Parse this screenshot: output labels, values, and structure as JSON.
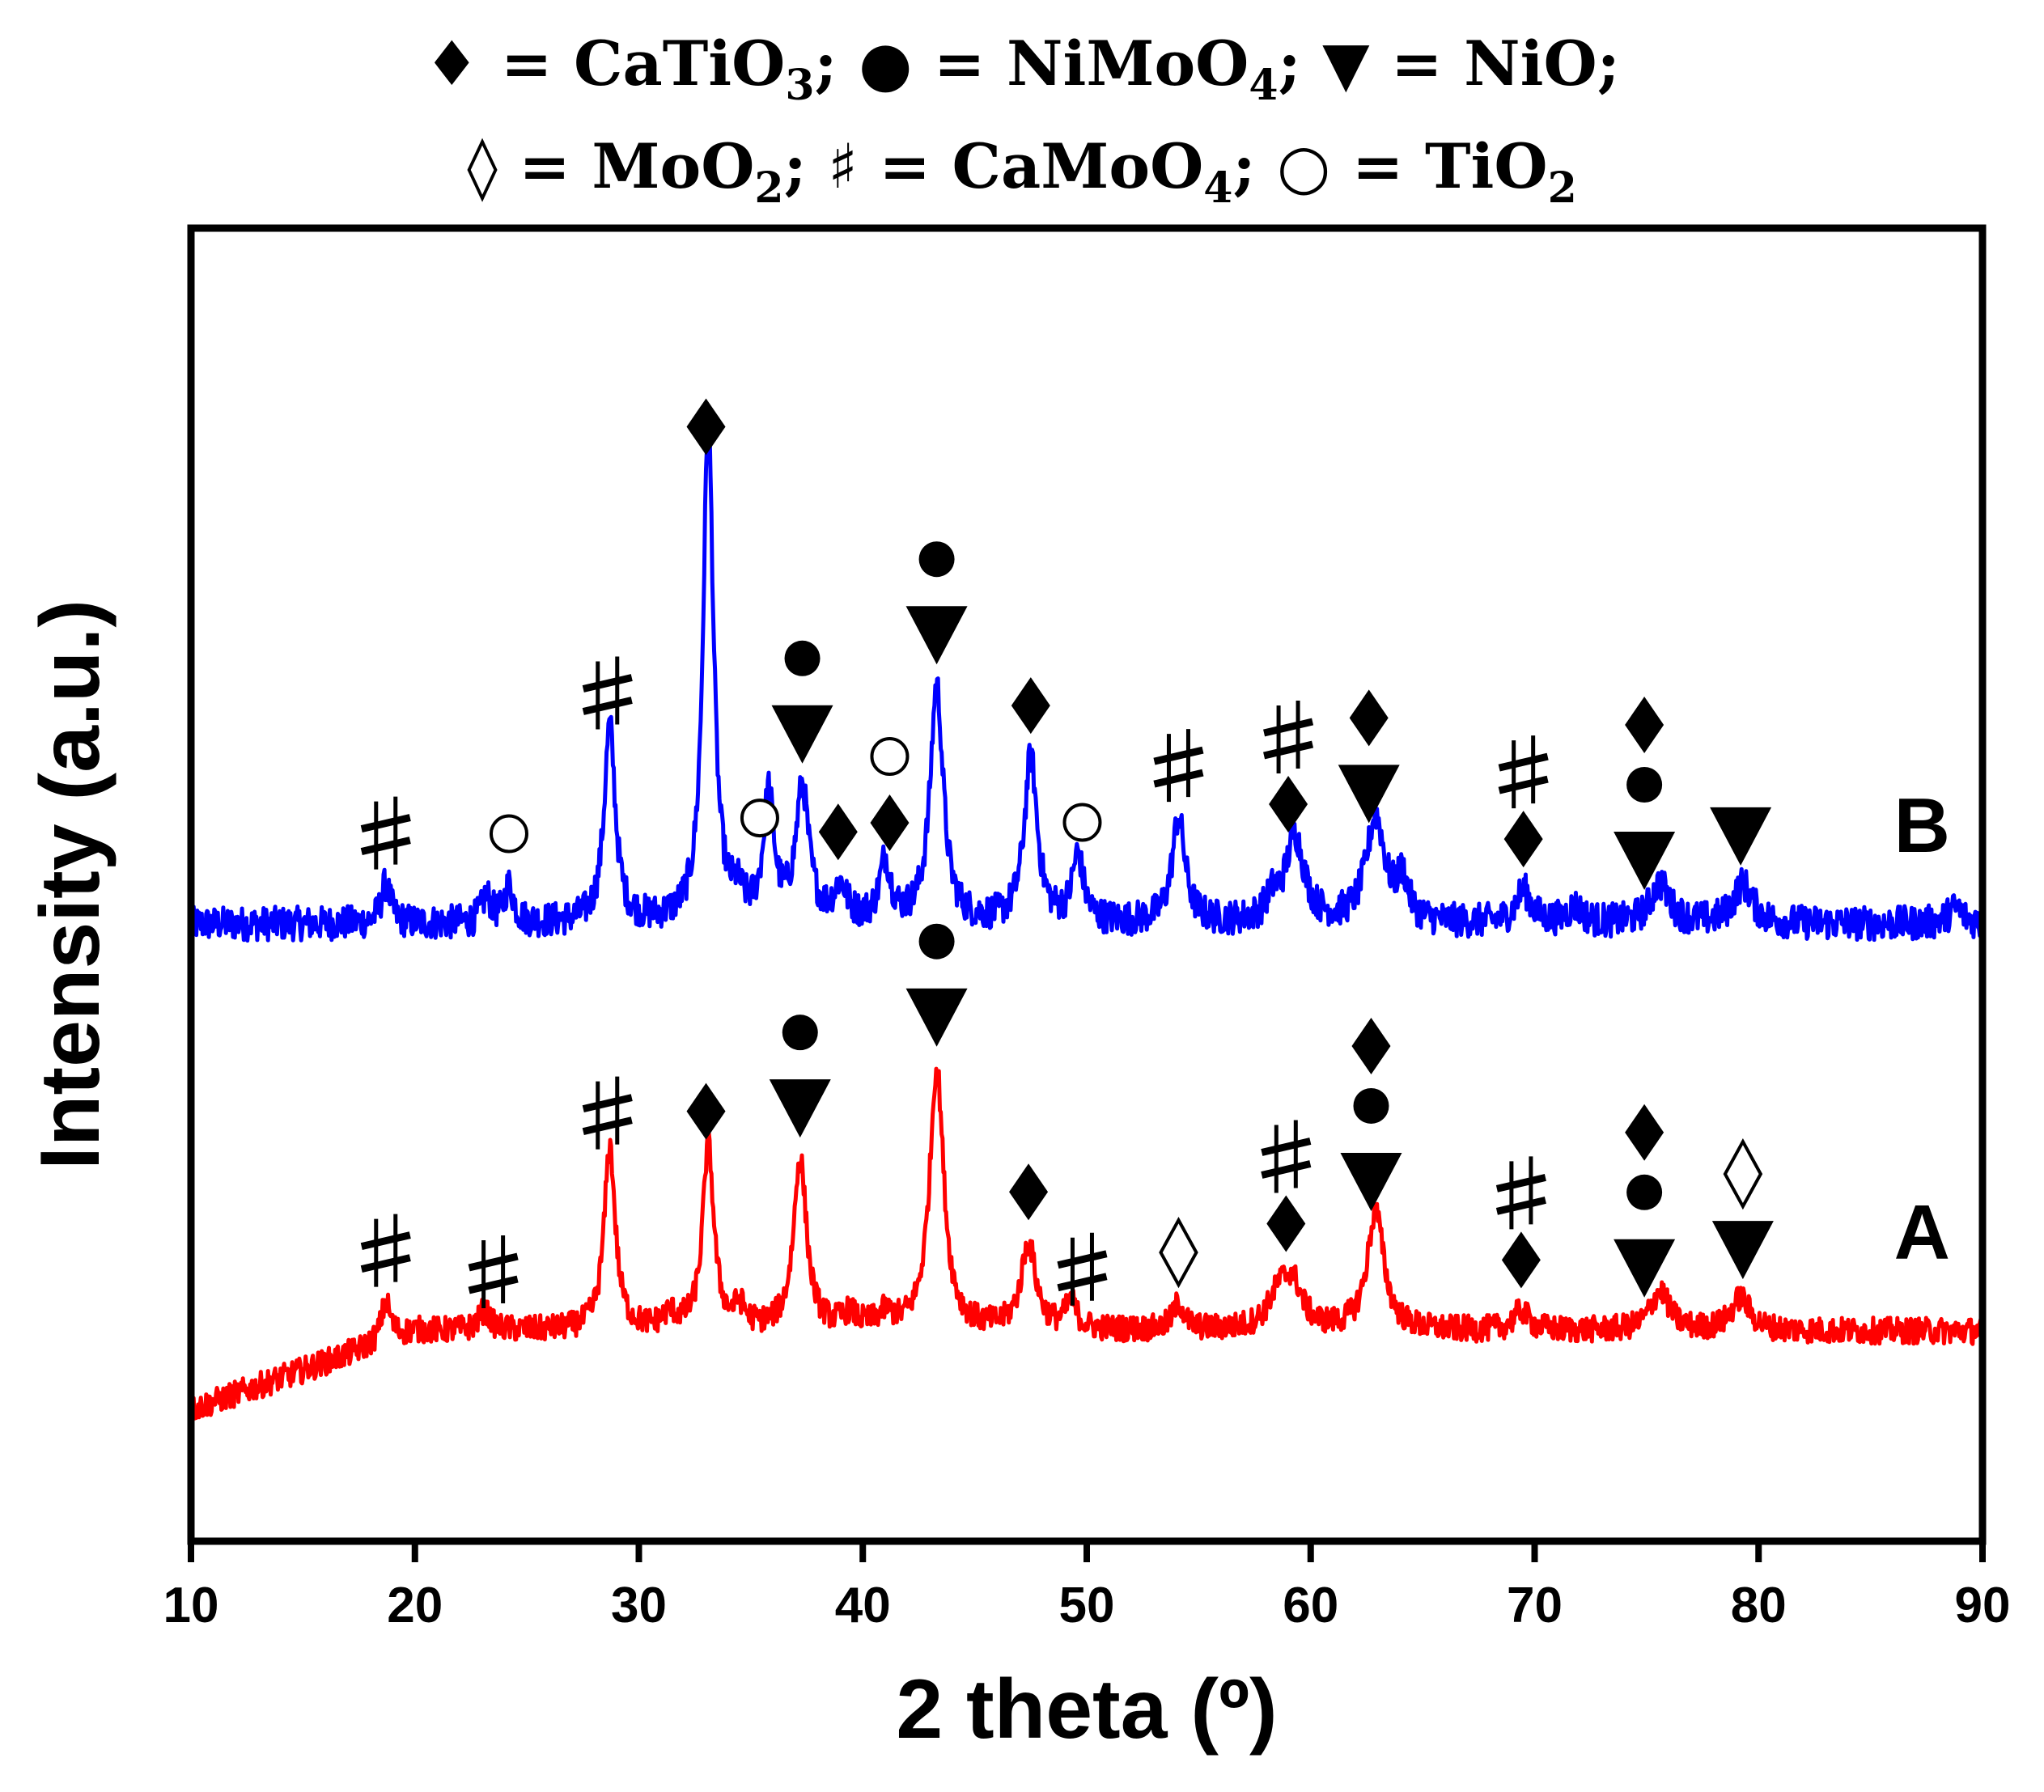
{
  "chart_data": {
    "type": "line",
    "title": "",
    "xlabel": "2 theta (º)",
    "ylabel": "Intensity (a.u.)",
    "xlim": [
      10,
      90
    ],
    "ylim": [
      0,
      100
    ],
    "xticks": [
      "10",
      "20",
      "30",
      "40",
      "50",
      "60",
      "70",
      "80",
      "90"
    ],
    "legend": {
      "line1": [
        {
          "symbol": "filled-diamond",
          "glyph": "♦",
          "text": "= CaTiO",
          "sub": "3",
          "sep": ";"
        },
        {
          "symbol": "filled-circle",
          "glyph": "●",
          "text": "= NiMoO",
          "sub": "4",
          "sep": ";"
        },
        {
          "symbol": "filled-triangle-down",
          "glyph": "▼",
          "text": "= NiO",
          "sub": "",
          "sep": ";"
        }
      ],
      "line2": [
        {
          "symbol": "open-diamond",
          "glyph": "◊",
          "text": "= MoO",
          "sub": "2",
          "sep": ";"
        },
        {
          "symbol": "sharp",
          "glyph": "♯",
          "text": "= CaMoO",
          "sub": "4",
          "sep": ";"
        },
        {
          "symbol": "open-circle",
          "glyph": "○",
          "text": "= TiO",
          "sub": "2",
          "sep": ""
        }
      ]
    },
    "series": [
      {
        "name": "B",
        "color": "#0000ff",
        "baseline": 47,
        "noise": 1.3,
        "peaks": [
          [
            18.7,
            3,
            0.25
          ],
          [
            23.2,
            2,
            0.25
          ],
          [
            24.2,
            2.8,
            0.25
          ],
          [
            28.7,
            15,
            0.3
          ],
          [
            33.1,
            38,
            0.28
          ],
          [
            34.4,
            1.5,
            0.3
          ],
          [
            35.8,
            9.5,
            0.28
          ],
          [
            37.3,
            10,
            0.35
          ],
          [
            39.0,
            2.5,
            0.35
          ],
          [
            41.0,
            4.5,
            0.3
          ],
          [
            43.3,
            18,
            0.35
          ],
          [
            47.5,
            12.5,
            0.35
          ],
          [
            49.6,
            5,
            0.3
          ],
          [
            54.1,
            8,
            0.35
          ],
          [
            58.3,
            1.5,
            0.35
          ],
          [
            59.3,
            6.5,
            0.5
          ],
          [
            62.9,
            8,
            0.5
          ],
          [
            64.1,
            3,
            0.3
          ],
          [
            69.5,
            2.5,
            0.4
          ],
          [
            71.8,
            1.2,
            0.4
          ],
          [
            75.6,
            3,
            0.5
          ],
          [
            79.3,
            3,
            0.5
          ],
          [
            88.8,
            1.2,
            0.4
          ]
        ],
        "markers": [
          {
            "x": 18.7,
            "symbols": [
              "sharp"
            ]
          },
          {
            "x": 24.2,
            "symbols": [
              "open-circle"
            ]
          },
          {
            "x": 28.6,
            "symbols": [
              "sharp"
            ]
          },
          {
            "x": 33.0,
            "symbols": [
              "filled-diamond"
            ]
          },
          {
            "x": 35.4,
            "symbols": [
              "open-circle"
            ]
          },
          {
            "x": 37.3,
            "symbols": [
              "filled-circle",
              "filled-triangle-down"
            ]
          },
          {
            "x": 38.9,
            "symbols": [
              "filled-diamond"
            ]
          },
          {
            "x": 41.2,
            "symbols": [
              "open-circle",
              "filled-diamond"
            ]
          },
          {
            "x": 43.3,
            "symbols": [
              "filled-circle",
              "filled-triangle-down"
            ]
          },
          {
            "x": 47.5,
            "symbols": [
              "filled-diamond"
            ]
          },
          {
            "x": 49.8,
            "symbols": [
              "open-circle"
            ]
          },
          {
            "x": 54.1,
            "symbols": [
              "sharp"
            ]
          },
          {
            "x": 59.0,
            "symbols": [
              "sharp",
              "filled-diamond"
            ]
          },
          {
            "x": 62.6,
            "symbols": [
              "filled-diamond",
              "filled-triangle-down"
            ]
          },
          {
            "x": 69.5,
            "symbols": [
              "sharp",
              "filled-diamond"
            ]
          },
          {
            "x": 74.9,
            "symbols": [
              "filled-diamond",
              "filled-circle",
              "filled-triangle-down"
            ]
          },
          {
            "x": 79.2,
            "symbols": [
              "filled-triangle-down"
            ]
          }
        ]
      },
      {
        "name": "A",
        "color": "#ff0000",
        "baseline": 16,
        "noise": 1.0,
        "rise_start": 10,
        "rise_end": 20,
        "rise_amount": 6,
        "peaks": [
          [
            18.7,
            3,
            0.25
          ],
          [
            23.1,
            1.5,
            0.3
          ],
          [
            28.7,
            14,
            0.3
          ],
          [
            31.4,
            1,
            0.4
          ],
          [
            33.1,
            14,
            0.3
          ],
          [
            34.5,
            1.5,
            0.3
          ],
          [
            37.2,
            13,
            0.35
          ],
          [
            39.4,
            1,
            0.4
          ],
          [
            41.0,
            1,
            0.4
          ],
          [
            43.3,
            20,
            0.38
          ],
          [
            47.4,
            6.5,
            0.4
          ],
          [
            49.3,
            2,
            0.3
          ],
          [
            54.1,
            2,
            0.3
          ],
          [
            58.6,
            2.5,
            0.6
          ],
          [
            59.2,
            3,
            0.5
          ],
          [
            62.9,
            9,
            0.45
          ],
          [
            69.4,
            1.5,
            0.4
          ],
          [
            75.6,
            3,
            0.5
          ],
          [
            79.2,
            2.5,
            0.5
          ]
        ],
        "markers": [
          {
            "x": 18.7,
            "symbols": [
              "sharp"
            ]
          },
          {
            "x": 23.5,
            "symbols": [
              "sharp"
            ]
          },
          {
            "x": 28.6,
            "symbols": [
              "sharp"
            ]
          },
          {
            "x": 33.0,
            "symbols": [
              "filled-diamond"
            ]
          },
          {
            "x": 37.2,
            "symbols": [
              "filled-circle",
              "filled-triangle-down"
            ]
          },
          {
            "x": 43.3,
            "symbols": [
              "filled-circle",
              "filled-triangle-down"
            ]
          },
          {
            "x": 47.4,
            "symbols": [
              "filled-diamond"
            ]
          },
          {
            "x": 49.8,
            "symbols": [
              "sharp"
            ]
          },
          {
            "x": 54.1,
            "symbols": [
              "open-diamond"
            ]
          },
          {
            "x": 58.9,
            "symbols": [
              "sharp",
              "filled-diamond"
            ]
          },
          {
            "x": 62.7,
            "symbols": [
              "filled-diamond",
              "filled-circle",
              "filled-triangle-down"
            ]
          },
          {
            "x": 69.4,
            "symbols": [
              "sharp",
              "filled-diamond"
            ]
          },
          {
            "x": 74.9,
            "symbols": [
              "filled-diamond",
              "filled-circle",
              "filled-triangle-down"
            ]
          },
          {
            "x": 79.3,
            "symbols": [
              "open-diamond",
              "filled-triangle-down"
            ]
          }
        ]
      }
    ]
  }
}
